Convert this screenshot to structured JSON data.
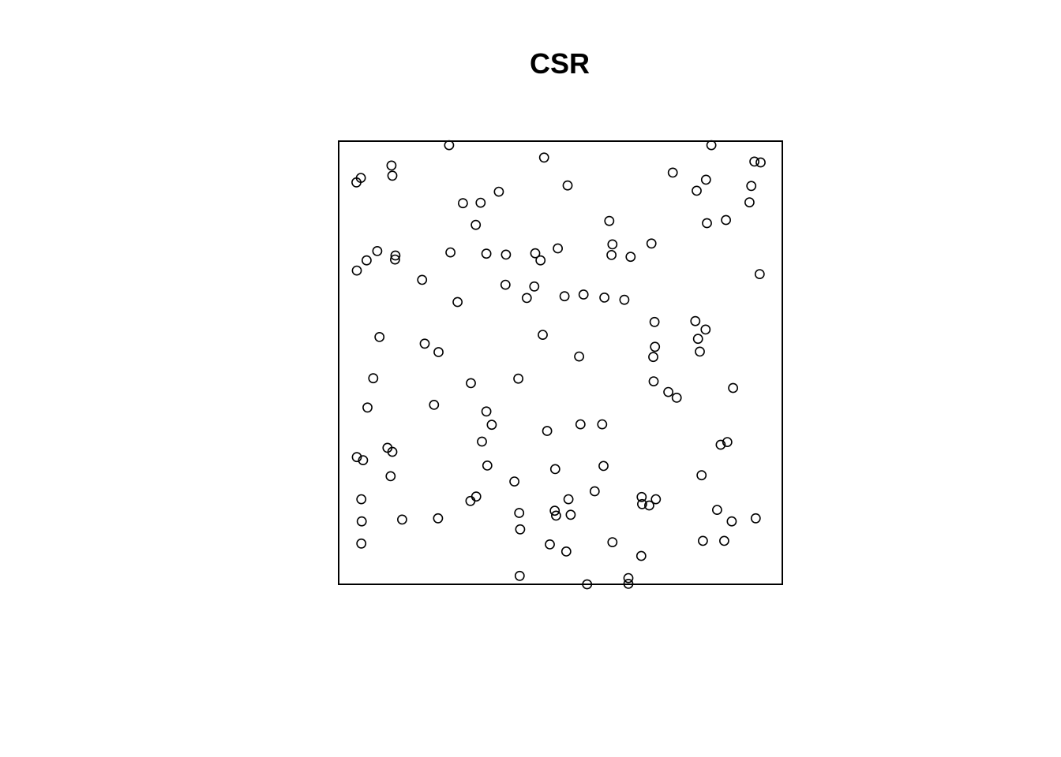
{
  "chart_data": {
    "type": "scatter",
    "title": "CSR",
    "xlabel": "",
    "ylabel": "",
    "xlim": [
      0,
      1
    ],
    "ylim": [
      0,
      1
    ],
    "axes": false,
    "grid": false,
    "legend": false,
    "marker": "open-circle",
    "marker_color": "#000000",
    "frame_color": "#000000",
    "points": [
      [
        0.249,
        0.991
      ],
      [
        0.463,
        0.963
      ],
      [
        0.84,
        0.991
      ],
      [
        0.119,
        0.945
      ],
      [
        0.121,
        0.922
      ],
      [
        0.05,
        0.917
      ],
      [
        0.04,
        0.907
      ],
      [
        0.516,
        0.9
      ],
      [
        0.361,
        0.886
      ],
      [
        0.753,
        0.929
      ],
      [
        0.807,
        0.888
      ],
      [
        0.828,
        0.913
      ],
      [
        0.937,
        0.954
      ],
      [
        0.951,
        0.952
      ],
      [
        0.93,
        0.899
      ],
      [
        0.926,
        0.862
      ],
      [
        0.28,
        0.86
      ],
      [
        0.32,
        0.861
      ],
      [
        0.309,
        0.811
      ],
      [
        0.61,
        0.82
      ],
      [
        0.83,
        0.815
      ],
      [
        0.873,
        0.822
      ],
      [
        0.617,
        0.767
      ],
      [
        0.705,
        0.769
      ],
      [
        0.615,
        0.743
      ],
      [
        0.658,
        0.739
      ],
      [
        0.494,
        0.758
      ],
      [
        0.443,
        0.747
      ],
      [
        0.455,
        0.731
      ],
      [
        0.377,
        0.744
      ],
      [
        0.333,
        0.746
      ],
      [
        0.252,
        0.749
      ],
      [
        0.087,
        0.752
      ],
      [
        0.063,
        0.731
      ],
      [
        0.128,
        0.742
      ],
      [
        0.127,
        0.733
      ],
      [
        0.041,
        0.708
      ],
      [
        0.188,
        0.687
      ],
      [
        0.949,
        0.7
      ],
      [
        0.376,
        0.676
      ],
      [
        0.441,
        0.672
      ],
      [
        0.424,
        0.646
      ],
      [
        0.509,
        0.65
      ],
      [
        0.552,
        0.654
      ],
      [
        0.599,
        0.647
      ],
      [
        0.644,
        0.642
      ],
      [
        0.268,
        0.637
      ],
      [
        0.712,
        0.592
      ],
      [
        0.804,
        0.594
      ],
      [
        0.827,
        0.575
      ],
      [
        0.092,
        0.558
      ],
      [
        0.46,
        0.563
      ],
      [
        0.194,
        0.543
      ],
      [
        0.225,
        0.524
      ],
      [
        0.542,
        0.514
      ],
      [
        0.713,
        0.536
      ],
      [
        0.709,
        0.513
      ],
      [
        0.81,
        0.554
      ],
      [
        0.814,
        0.525
      ],
      [
        0.078,
        0.465
      ],
      [
        0.405,
        0.464
      ],
      [
        0.298,
        0.454
      ],
      [
        0.71,
        0.458
      ],
      [
        0.743,
        0.434
      ],
      [
        0.762,
        0.421
      ],
      [
        0.889,
        0.443
      ],
      [
        0.065,
        0.399
      ],
      [
        0.215,
        0.405
      ],
      [
        0.333,
        0.39
      ],
      [
        0.345,
        0.36
      ],
      [
        0.47,
        0.346
      ],
      [
        0.545,
        0.361
      ],
      [
        0.594,
        0.361
      ],
      [
        0.323,
        0.322
      ],
      [
        0.041,
        0.287
      ],
      [
        0.055,
        0.28
      ],
      [
        0.11,
        0.308
      ],
      [
        0.121,
        0.299
      ],
      [
        0.335,
        0.268
      ],
      [
        0.876,
        0.321
      ],
      [
        0.861,
        0.315
      ],
      [
        0.117,
        0.244
      ],
      [
        0.488,
        0.26
      ],
      [
        0.597,
        0.267
      ],
      [
        0.396,
        0.232
      ],
      [
        0.051,
        0.192
      ],
      [
        0.31,
        0.198
      ],
      [
        0.297,
        0.188
      ],
      [
        0.518,
        0.192
      ],
      [
        0.577,
        0.21
      ],
      [
        0.683,
        0.197
      ],
      [
        0.715,
        0.192
      ],
      [
        0.7,
        0.178
      ],
      [
        0.684,
        0.181
      ],
      [
        0.818,
        0.246
      ],
      [
        0.052,
        0.142
      ],
      [
        0.143,
        0.146
      ],
      [
        0.224,
        0.149
      ],
      [
        0.407,
        0.161
      ],
      [
        0.487,
        0.166
      ],
      [
        0.49,
        0.155
      ],
      [
        0.523,
        0.157
      ],
      [
        0.409,
        0.124
      ],
      [
        0.853,
        0.168
      ],
      [
        0.886,
        0.142
      ],
      [
        0.94,
        0.149
      ],
      [
        0.051,
        0.092
      ],
      [
        0.476,
        0.09
      ],
      [
        0.513,
        0.074
      ],
      [
        0.617,
        0.095
      ],
      [
        0.682,
        0.064
      ],
      [
        0.821,
        0.098
      ],
      [
        0.869,
        0.098
      ],
      [
        0.408,
        0.019
      ],
      [
        0.56,
        0.0
      ],
      [
        0.653,
        0.014
      ],
      [
        0.653,
        0.001
      ]
    ]
  }
}
